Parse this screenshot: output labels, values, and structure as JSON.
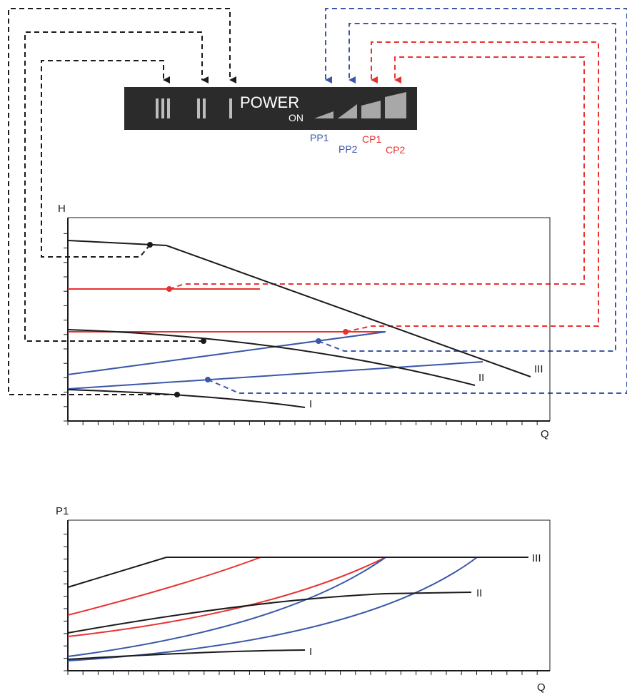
{
  "colors": {
    "black": "#1a1a1a",
    "red": "#e8312f",
    "blue": "#3a57a8",
    "panel": "#2b2b2b",
    "panel_text": "#ffffff",
    "bar": "#a8a8a8"
  },
  "control_panel": {
    "speed_marks": [
      "III",
      "II",
      "I"
    ],
    "power_label": "POWER",
    "on_label": "ON",
    "mode_labels": {
      "pp1": "PP1",
      "pp2": "PP2",
      "cp1": "CP1",
      "cp2": "CP2"
    }
  },
  "head_chart": {
    "y_axis_label": "H",
    "x_axis_label": "Q",
    "curve_labels": {
      "speed3": "III",
      "speed2": "II",
      "speed1": "I"
    }
  },
  "power_chart": {
    "y_axis_label": "P1",
    "x_axis_label": "Q",
    "curve_labels": {
      "speed3": "III",
      "speed2": "II",
      "speed1": "I"
    }
  }
}
